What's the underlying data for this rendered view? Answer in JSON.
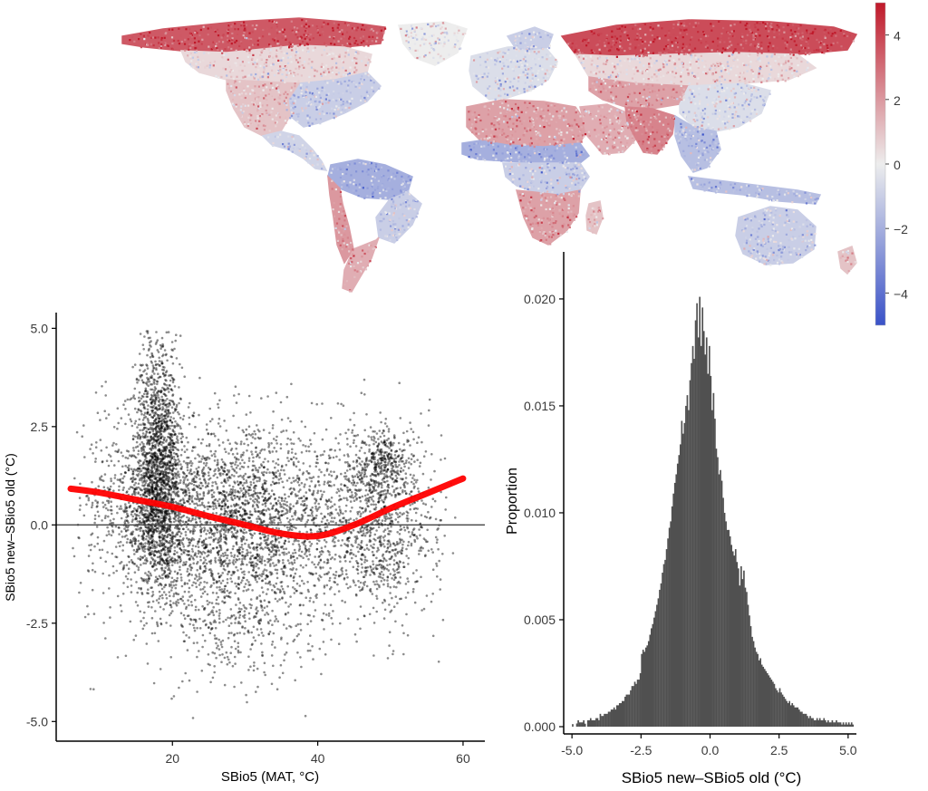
{
  "chart_data": [
    {
      "type": "heatmap",
      "subtype": "world-map",
      "title": "",
      "colorbar": {
        "ticks": [
          4,
          2,
          0,
          -2,
          -4
        ],
        "tick_labels": [
          "4",
          "2",
          "0",
          "−2",
          "−4"
        ],
        "range": [
          -5,
          5
        ],
        "colors": {
          "low": "#3a52c8",
          "mid": "#ededed",
          "high": "#c0192a"
        }
      },
      "regions": [
        {
          "region": "north-america-arctic",
          "value": 3.5
        },
        {
          "region": "north-america-boreal",
          "value": 0.5
        },
        {
          "region": "north-america-east",
          "value": -1.0
        },
        {
          "region": "north-america-great-plains",
          "value": 1.0
        },
        {
          "region": "central-america",
          "value": -0.8
        },
        {
          "region": "greenland",
          "value": 0.0
        },
        {
          "region": "amazon",
          "value": -2.0
        },
        {
          "region": "south-america-east",
          "value": -1.0
        },
        {
          "region": "andes-west",
          "value": 2.0
        },
        {
          "region": "patagonia",
          "value": 1.5
        },
        {
          "region": "europe",
          "value": -0.5
        },
        {
          "region": "scandinavia",
          "value": -1.0
        },
        {
          "region": "sahara",
          "value": 1.8
        },
        {
          "region": "arabia",
          "value": 1.5
        },
        {
          "region": "sahel",
          "value": -2.0
        },
        {
          "region": "central-africa",
          "value": -1.0
        },
        {
          "region": "southern-africa",
          "value": 1.8
        },
        {
          "region": "madagascar",
          "value": 1.0
        },
        {
          "region": "siberia-north",
          "value": 3.8
        },
        {
          "region": "siberia-central",
          "value": 0.5
        },
        {
          "region": "central-asia",
          "value": 1.8
        },
        {
          "region": "india",
          "value": 2.5
        },
        {
          "region": "china-east",
          "value": -0.5
        },
        {
          "region": "southeast-asia",
          "value": -1.5
        },
        {
          "region": "indonesia",
          "value": -1.5
        },
        {
          "region": "australia",
          "value": -1.0
        },
        {
          "region": "new-zealand",
          "value": 1.0
        }
      ]
    },
    {
      "type": "scatter",
      "title": "",
      "xlabel": "SBio5 (MAT, °C)",
      "ylabel": "SBio5 new–SBio5 old (°C)",
      "xlim": [
        4,
        63
      ],
      "ylim": [
        -5.5,
        5.4
      ],
      "xticks": [
        20,
        40,
        60
      ],
      "yticks": [
        -5.0,
        -2.5,
        0.0,
        2.5,
        5.0
      ],
      "ytick_labels": [
        "-5.0",
        "-2.5",
        "0.0",
        "2.5",
        "5.0"
      ],
      "reference_line_y": 0,
      "point_color": "#000000",
      "series": [
        {
          "kind": "smooth",
          "color": "#ff0000",
          "x": [
            6,
            10,
            15,
            20,
            25,
            30,
            35,
            40,
            45,
            50,
            55,
            60
          ],
          "y": [
            0.92,
            0.82,
            0.64,
            0.46,
            0.22,
            0.0,
            -0.22,
            -0.28,
            0.0,
            0.42,
            0.8,
            1.18
          ]
        }
      ],
      "clusters": [
        {
          "x_center": 18,
          "y_center": 2.2,
          "x_sd": 1.6,
          "y_sd": 1.4,
          "count": 1100
        },
        {
          "x_center": 18,
          "y_center": 0.2,
          "x_sd": 2.0,
          "y_sd": 1.0,
          "count": 1000
        },
        {
          "x_center": 30,
          "y_center": 0.1,
          "x_sd": 7.5,
          "y_sd": 1.2,
          "count": 2600
        },
        {
          "x_center": 28,
          "y_center": -2.5,
          "x_sd": 6.0,
          "y_sd": 0.9,
          "count": 350
        },
        {
          "x_center": 49,
          "y_center": 0.0,
          "x_sd": 4.0,
          "y_sd": 1.2,
          "count": 900
        },
        {
          "x_center": 49,
          "y_center": 1.6,
          "x_sd": 2.0,
          "y_sd": 0.4,
          "count": 300
        },
        {
          "x_center": 12,
          "y_center": 0.5,
          "x_sd": 3.0,
          "y_sd": 1.2,
          "count": 300
        }
      ]
    },
    {
      "type": "bar",
      "subtype": "histogram",
      "title": "",
      "xlabel": "SBio5 new–SBio5 old (°C)",
      "ylabel": "Proportion",
      "xlim": [
        -5.3,
        5.3
      ],
      "ylim": [
        0,
        0.0222
      ],
      "xticks": [
        -5.0,
        -2.5,
        0.0,
        2.5,
        5.0
      ],
      "xtick_labels": [
        "-5.0",
        "-2.5",
        "0.0",
        "2.5",
        "5.0"
      ],
      "yticks": [
        0.0,
        0.005,
        0.01,
        0.015,
        0.02
      ],
      "ytick_labels": [
        "0.000",
        "0.005",
        "0.010",
        "0.015",
        "0.020"
      ],
      "bar_color": "#505050",
      "bin_width": 0.05,
      "x_start": -5.0,
      "values": [
        0.00012,
        0,
        0,
        0.00015,
        0.0003,
        0.0002,
        0.0002,
        0.0002,
        0.0003,
        0.00014,
        0,
        0.0003,
        0.0003,
        0.0004,
        0.0003,
        0.0003,
        0.0003,
        0.0004,
        0.0004,
        0.0003,
        0.0006,
        0.0005,
        0.0005,
        0.0006,
        0.0006,
        0.0006,
        0.0007,
        0.0007,
        0.0008,
        0.0008,
        0.0009,
        0.0008,
        0.001,
        0.001,
        0.0011,
        0.0011,
        0.0012,
        0.0012,
        0.0014,
        0.0015,
        0.0015,
        0.0015,
        0.0017,
        0.0019,
        0.0019,
        0.0021,
        0.002,
        0.0022,
        0.0022,
        0.0025,
        0.0034,
        0.0036,
        0.0035,
        0.0037,
        0.0038,
        0.004,
        0.0043,
        0.0046,
        0.0048,
        0.0051,
        0.0054,
        0.0057,
        0.006,
        0.0064,
        0.0067,
        0.0072,
        0.0076,
        0.0078,
        0.0083,
        0.0088,
        0.0093,
        0.0096,
        0.0103,
        0.0109,
        0.0114,
        0.0118,
        0.0123,
        0.0127,
        0.0132,
        0.0143,
        0.0137,
        0.0142,
        0.015,
        0.0155,
        0.0148,
        0.0162,
        0.017,
        0.0178,
        0.0172,
        0.019,
        0.0198,
        0.0182,
        0.0201,
        0.0178,
        0.0196,
        0.0185,
        0.0174,
        0.0182,
        0.0165,
        0.0178,
        0.0164,
        0.0148,
        0.0156,
        0.0144,
        0.013,
        0.0126,
        0.0118,
        0.012,
        0.0115,
        0.0107,
        0.01,
        0.0096,
        0.0092,
        0.0092,
        0.0089,
        0.0085,
        0.0082,
        0.008,
        0.0083,
        0.0077,
        0.0074,
        0.0066,
        0.0075,
        0.0069,
        0.0073,
        0.0065,
        0.0063,
        0.0057,
        0.0052,
        0.0047,
        0.0042,
        0.004,
        0.0037,
        0.0035,
        0.0034,
        0.0031,
        0.0032,
        0.0029,
        0.0028,
        0.0027,
        0.0026,
        0.0025,
        0.0024,
        0.0023,
        0.0022,
        0.0021,
        0.002,
        0.0018,
        0.0017,
        0.0016,
        0.0018,
        0.0016,
        0.0015,
        0.0014,
        0.0013,
        0.0012,
        0.0011,
        0.0012,
        0.001,
        0.0011,
        0.001,
        0.0009,
        0.0009,
        0.0009,
        0.0008,
        0.0007,
        0.0007,
        0.0006,
        0.0006,
        0.0006,
        0.0005,
        0.0004,
        0.0005,
        0.0004,
        0.0004,
        0.0003,
        0.0003,
        0.0004,
        0.0003,
        0.0004,
        0.0003,
        0.0003,
        0.0004,
        0.0003,
        0.0002,
        0.0003,
        0.0002,
        0.0002,
        0.0003,
        0.0002,
        0.0002,
        0.0003,
        0.0002,
        0.0002,
        0.0002,
        0.0001,
        0.0002,
        0.0001,
        0.0002,
        0.0001,
        0.0002,
        0.0001,
        0.0002,
        0.0001
      ]
    }
  ]
}
